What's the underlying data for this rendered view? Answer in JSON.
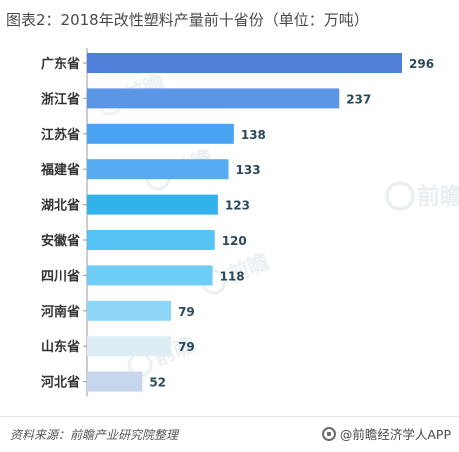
{
  "title": "图表2：2018年改性塑料产量前十省份（单位：万吨）",
  "chart_data": {
    "type": "bar",
    "orientation": "horizontal",
    "categories": [
      "广东省",
      "浙江省",
      "江苏省",
      "福建省",
      "湖北省",
      "安徽省",
      "四川省",
      "河南省",
      "山东省",
      "河北省"
    ],
    "values": [
      296,
      237,
      138,
      133,
      123,
      120,
      118,
      79,
      79,
      52
    ],
    "bar_colors": [
      "#4f7fd6",
      "#5b96e6",
      "#4aa3f2",
      "#57abf2",
      "#32b2ea",
      "#55c4f4",
      "#6ecdf6",
      "#8dd6f8",
      "#dceef4",
      "#c6d6ec"
    ],
    "label_color": "#2a4a5c",
    "xlim": [
      0,
      296
    ]
  },
  "watermarks": [
    {
      "name": "前瞻",
      "caption": "前瞻产业研究院"
    }
  ],
  "footer": {
    "source": "资料来源：前瞻产业研究院整理",
    "brand": "@前瞻经济学人APP"
  }
}
